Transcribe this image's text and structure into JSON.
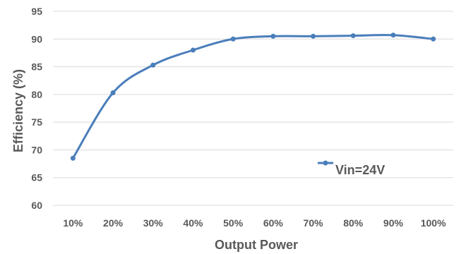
{
  "chart_data": {
    "type": "line",
    "title": "",
    "xlabel": "Output Power",
    "ylabel": "Efficiency (%)",
    "categories": [
      "10%",
      "20%",
      "30%",
      "40%",
      "50%",
      "60%",
      "70%",
      "80%",
      "90%",
      "100%"
    ],
    "series": [
      {
        "name": "Vin=24V",
        "values": [
          68.5,
          80.3,
          85.3,
          88.0,
          90.0,
          90.5,
          90.5,
          90.6,
          90.7,
          90.0
        ]
      }
    ],
    "ylim": [
      60,
      95
    ],
    "yticks": [
      60,
      65,
      70,
      75,
      80,
      85,
      90,
      95
    ],
    "grid": true,
    "legend_position": "lower-right",
    "line_style": "smooth-with-markers",
    "colors": {
      "series": "#4a7ebb",
      "grid": "#d9d9d9",
      "text": "#595959"
    }
  }
}
